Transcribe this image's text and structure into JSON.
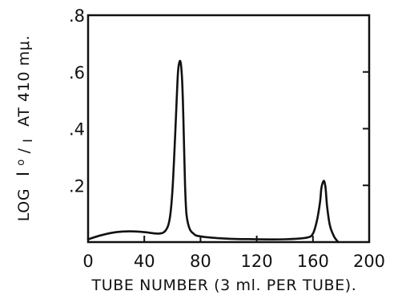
{
  "chart_data": {
    "type": "line",
    "xlabel": "TUBE NUMBER (3 ml. PER TUBE).",
    "ylabel_parts": {
      "log": "LOG",
      "i0": "I",
      "i0_sub": "o",
      "slash": "/",
      "i": "I",
      "rest": "AT 410 mμ."
    },
    "xlim": [
      0,
      200
    ],
    "ylim": [
      0,
      0.8
    ],
    "xticks": [
      0,
      40,
      80,
      120,
      160,
      200
    ],
    "xtick_labels": [
      "0",
      "40",
      "80",
      "120",
      "160",
      "200"
    ],
    "yticks": [
      0.2,
      0.4,
      0.6,
      0.8
    ],
    "ytick_labels": [
      ".2",
      ".4",
      ".6",
      ".8"
    ],
    "grid": false,
    "series": [
      {
        "x": [
          0,
          10,
          20,
          30,
          40,
          50,
          55,
          58,
          60,
          62,
          63,
          64,
          65,
          66,
          67,
          68,
          69,
          70,
          72,
          75,
          80,
          100,
          120,
          140,
          155,
          160,
          163,
          165,
          166,
          167,
          168,
          169,
          170,
          172,
          175,
          178
        ],
        "y": [
          0.01,
          0.025,
          0.035,
          0.038,
          0.035,
          0.03,
          0.04,
          0.08,
          0.18,
          0.38,
          0.5,
          0.6,
          0.635,
          0.63,
          0.56,
          0.4,
          0.2,
          0.1,
          0.05,
          0.03,
          0.02,
          0.012,
          0.01,
          0.01,
          0.015,
          0.03,
          0.08,
          0.14,
          0.19,
          0.21,
          0.215,
          0.19,
          0.13,
          0.06,
          0.02,
          0.0
        ]
      }
    ]
  }
}
